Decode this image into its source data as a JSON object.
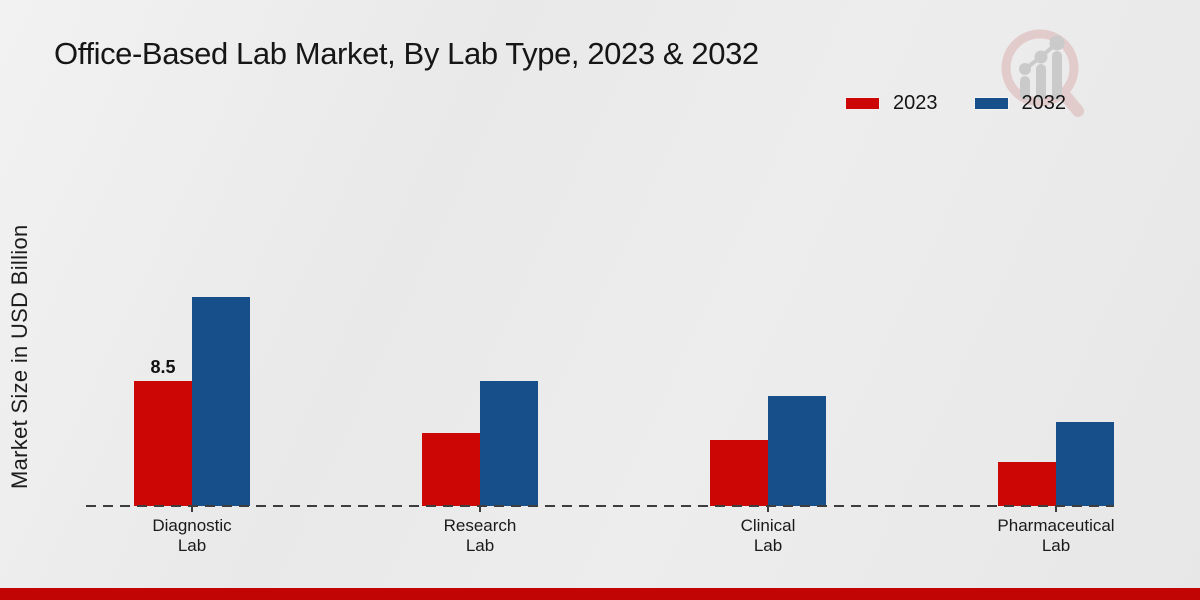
{
  "chart_data": {
    "type": "bar",
    "title": "Office-Based Lab Market, By Lab Type, 2023 & 2032",
    "categories": [
      "Diagnostic Lab",
      "Research Lab",
      "Clinical Lab",
      "Pharmaceutical Lab"
    ],
    "series": [
      {
        "name": "2023",
        "color": "#cc0505",
        "values": [
          8.5,
          5.0,
          4.5,
          3.0
        ],
        "value_labels": [
          "8.5",
          "",
          "",
          ""
        ]
      },
      {
        "name": "2032",
        "color": "#174f8b",
        "values": [
          14.2,
          8.5,
          7.5,
          5.7
        ],
        "value_labels": [
          "",
          "",
          "",
          ""
        ]
      }
    ],
    "xlabel": "",
    "ylabel": "Market Size in USD Billion",
    "ylim": [
      0,
      21.5
    ],
    "grid": false,
    "legend_position": "top-right",
    "axis_style": "dashed-baseline-only",
    "data_label_note": "only the 2023 Diagnostic Lab bar is labeled (8.5)"
  },
  "colors": {
    "series_2023": "#cc0505",
    "series_2032": "#174f8b",
    "footer_bar": "#c10505",
    "axis_line": "#3d3d3d",
    "background": "#ebebeb",
    "text": "#141414"
  },
  "branding": {
    "logo_icon": "magnifier-bar-chart-watermark"
  }
}
